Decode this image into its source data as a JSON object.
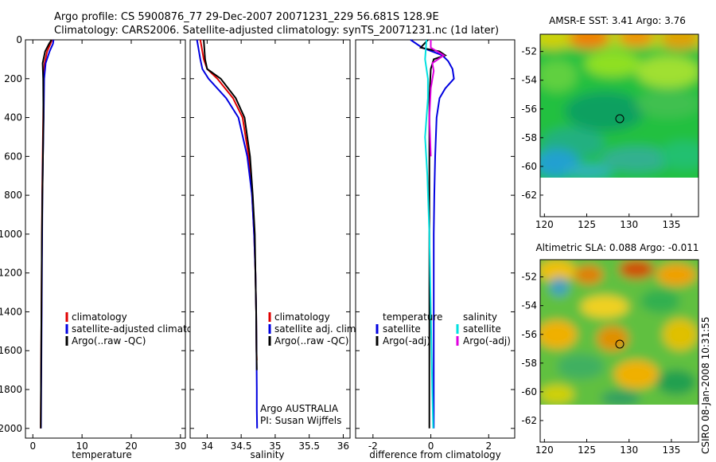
{
  "title": {
    "line1": "Argo profile: CS 5900876_77 29-Dec-2007 20071231_229 56.681S 128.9E",
    "line2": "Climatology: CARS2006. Satellite-adjusted climatology: synTS_20071231.nc (1d later)"
  },
  "stamp": "CSIRO 08-Jan-2008 10:31:55",
  "colors": {
    "climatology": "#e00000",
    "satellite": "#0000e0",
    "argo": "#000000",
    "sal_sat": "#00e0e0",
    "sal_argo": "#e000e0"
  },
  "chart_data": [
    {
      "type": "line",
      "name": "temperature-profile",
      "xlabel": "temperature",
      "ylabel": "",
      "xlim": [
        -1.5,
        31
      ],
      "ylim": [
        2050,
        0
      ],
      "xticks": [
        0,
        10,
        20,
        30
      ],
      "yticks": [
        0,
        200,
        400,
        600,
        800,
        1000,
        1200,
        1400,
        1600,
        1800,
        2000
      ],
      "legend": [
        "climatology",
        "satellite-adjusted climatology",
        "Argo(..raw -QC)"
      ],
      "series": [
        {
          "name": "climatology",
          "color": "#e00000",
          "x": [
            3.9,
            3.6,
            2.9,
            2.4,
            2.2,
            2.1,
            2.0,
            1.9,
            1.85,
            1.8,
            1.75,
            1.7,
            1.65,
            1.6
          ],
          "y": [
            0,
            20,
            60,
            120,
            200,
            400,
            600,
            800,
            1000,
            1200,
            1400,
            1600,
            1800,
            2000
          ]
        },
        {
          "name": "satellite-adjusted climatology",
          "color": "#0000e0",
          "x": [
            4.2,
            4.1,
            3.4,
            2.6,
            2.3,
            2.2,
            2.05,
            1.95,
            1.9,
            1.85,
            1.8,
            1.75,
            1.7,
            1.65
          ],
          "y": [
            0,
            20,
            60,
            120,
            200,
            400,
            600,
            800,
            1000,
            1200,
            1400,
            1600,
            1800,
            2000
          ]
        },
        {
          "name": "Argo(..raw -QC)",
          "color": "#000000",
          "x": [
            3.8,
            3.3,
            2.5,
            2.0,
            2.1,
            2.15,
            2.05,
            1.95,
            1.85,
            1.8,
            1.75,
            1.7,
            1.65,
            1.6
          ],
          "y": [
            0,
            20,
            60,
            120,
            200,
            400,
            600,
            800,
            1000,
            1200,
            1400,
            1600,
            1800,
            2000
          ]
        }
      ]
    },
    {
      "type": "line",
      "name": "salinity-profile",
      "xlabel": "salinity",
      "xlim": [
        33.75,
        36.1
      ],
      "ylim": [
        2050,
        0
      ],
      "xticks": [
        34,
        34.5,
        35,
        35.5,
        36
      ],
      "legend": [
        "climatology",
        "satellite adj. clim.",
        "Argo(..raw -QC)"
      ],
      "annotations": [
        "Argo AUSTRALIA",
        "PI: Susan Wijffels"
      ],
      "series": [
        {
          "name": "climatology",
          "color": "#e00000",
          "x": [
            33.9,
            33.95,
            34.0,
            34.15,
            34.38,
            34.52,
            34.61,
            34.66,
            34.69,
            34.71,
            34.72,
            34.725,
            34.73
          ],
          "y": [
            0,
            100,
            150,
            200,
            300,
            400,
            600,
            800,
            1000,
            1200,
            1400,
            1600,
            1650
          ]
        },
        {
          "name": "satellite adj. clim.",
          "color": "#0000e0",
          "x": [
            33.85,
            33.9,
            33.93,
            34.02,
            34.28,
            34.46,
            34.59,
            34.66,
            34.69,
            34.71,
            34.72,
            34.725,
            34.73,
            34.73,
            34.735
          ],
          "y": [
            0,
            100,
            150,
            200,
            300,
            400,
            600,
            800,
            1000,
            1200,
            1400,
            1600,
            1800,
            1900,
            2000
          ]
        },
        {
          "name": "Argo(..raw -QC)",
          "color": "#000000",
          "x": [
            33.95,
            33.97,
            34.0,
            34.2,
            34.42,
            34.55,
            34.63,
            34.67,
            34.7,
            34.71,
            34.72,
            34.725,
            34.73
          ],
          "y": [
            0,
            100,
            150,
            200,
            300,
            400,
            600,
            800,
            1000,
            1200,
            1400,
            1600,
            1700
          ]
        }
      ]
    },
    {
      "type": "line",
      "name": "difference-profile",
      "xlabel": "difference from climatology",
      "xlim": [
        -2.6,
        2.9
      ],
      "ylim": [
        2050,
        0
      ],
      "xticks": [
        -2,
        0,
        2
      ],
      "legend_headers": [
        "temperature",
        "salinity"
      ],
      "legend": [
        {
          "label": "satellite",
          "color": "#0000e0"
        },
        {
          "label": "Argo(-adj)",
          "color": "#000000"
        },
        {
          "label": "satellite",
          "color": "#00e0e0"
        },
        {
          "label": "Argo(-adj)",
          "color": "#e000e0"
        }
      ],
      "series": [
        {
          "name": "temperature satellite",
          "color": "#0000e0",
          "x": [
            -0.7,
            -0.3,
            0.4,
            0.6,
            0.75,
            0.8,
            0.5,
            0.3,
            0.2,
            0.15,
            0.12,
            0.1,
            0.1,
            0.1,
            0.1,
            0.1
          ],
          "y": [
            0,
            40,
            80,
            110,
            150,
            200,
            250,
            300,
            400,
            600,
            800,
            1000,
            1400,
            1800,
            1950,
            2000
          ]
        },
        {
          "name": "temperature Argo(-adj)",
          "color": "#000000",
          "x": [
            -0.1,
            -0.35,
            0.3,
            0.5,
            0.1,
            0.0,
            -0.05,
            -0.05,
            -0.05,
            -0.05,
            -0.05,
            -0.05
          ],
          "y": [
            0,
            40,
            60,
            80,
            100,
            150,
            300,
            600,
            1000,
            1400,
            1800,
            2000
          ]
        },
        {
          "name": "salinity satellite",
          "color": "#00e0e0",
          "x": [
            -0.15,
            -0.2,
            -0.1,
            -0.1,
            -0.15,
            -0.2,
            -0.12,
            -0.05,
            0.0,
            0.05,
            0.08
          ],
          "y": [
            0,
            100,
            200,
            300,
            400,
            500,
            700,
            1000,
            1400,
            1800,
            2000
          ]
        },
        {
          "name": "salinity Argo(-adj)",
          "color": "#e000e0",
          "x": [
            0.0,
            0.0,
            0.45,
            0.05,
            0.1,
            0.0,
            -0.05,
            0.0
          ],
          "y": [
            0,
            40,
            80,
            120,
            160,
            250,
            400,
            600
          ]
        }
      ]
    },
    {
      "type": "heatmap",
      "name": "sst-map",
      "title": "AMSR-E SST: 3.41 Argo: 3.76",
      "xlim": [
        119.5,
        138.2
      ],
      "ylim": [
        -63.5,
        -50.8
      ],
      "xticks": [
        120,
        125,
        130,
        135
      ],
      "yticks": [
        -52,
        -54,
        -56,
        -58,
        -60,
        -62
      ],
      "data_ylim": [
        -60,
        -50.8
      ],
      "marker": {
        "lon": 128.9,
        "lat": -56.681
      }
    },
    {
      "type": "heatmap",
      "name": "sla-map",
      "title": "Altimetric SLA: 0.088 Argo: -0.011",
      "xlim": [
        119.5,
        138.2
      ],
      "ylim": [
        -63.5,
        -50.8
      ],
      "xticks": [
        120,
        125,
        130,
        135
      ],
      "yticks": [
        -52,
        -54,
        -56,
        -58,
        -60,
        -62
      ],
      "data_ylim": [
        -60,
        -50.8
      ],
      "marker": {
        "lon": 128.9,
        "lat": -56.681
      }
    }
  ]
}
